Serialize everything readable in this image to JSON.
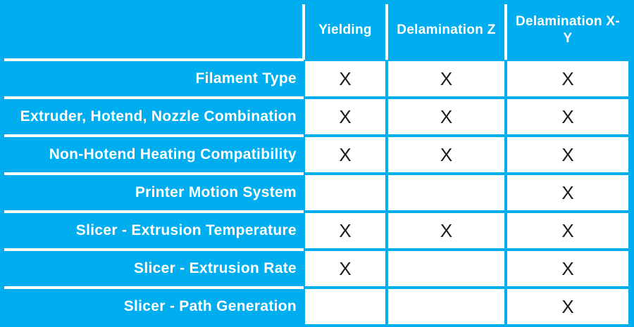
{
  "chart_data": {
    "type": "table",
    "columns": [
      "Yielding",
      "Delamination Z",
      "Delamination X-Y"
    ],
    "rows": [
      {
        "label": "Filament Type",
        "cells": [
          "X",
          "X",
          "X"
        ]
      },
      {
        "label": "Extruder, Hotend, Nozzle Combination",
        "cells": [
          "X",
          "X",
          "X"
        ]
      },
      {
        "label": "Non-Hotend Heating Compatibility",
        "cells": [
          "X",
          "X",
          "X"
        ]
      },
      {
        "label": "Printer Motion System",
        "cells": [
          "",
          "",
          "X"
        ]
      },
      {
        "label": "Slicer - Extrusion Temperature",
        "cells": [
          "X",
          "X",
          "X"
        ]
      },
      {
        "label": "Slicer - Extrusion Rate",
        "cells": [
          "X",
          "",
          "X"
        ]
      },
      {
        "label": "Slicer - Path Generation",
        "cells": [
          "",
          "",
          "X"
        ]
      }
    ],
    "mark_glyph": "X",
    "layout": {
      "grid": "on",
      "header_position": "top",
      "label_alignment": "right"
    }
  },
  "colors": {
    "background": "#00AEEF",
    "cell_bg": "#FFFFFF",
    "label_text": "#FFFFFF",
    "mark_text": "#1A1A1A",
    "divider": "#FFFFFF"
  }
}
